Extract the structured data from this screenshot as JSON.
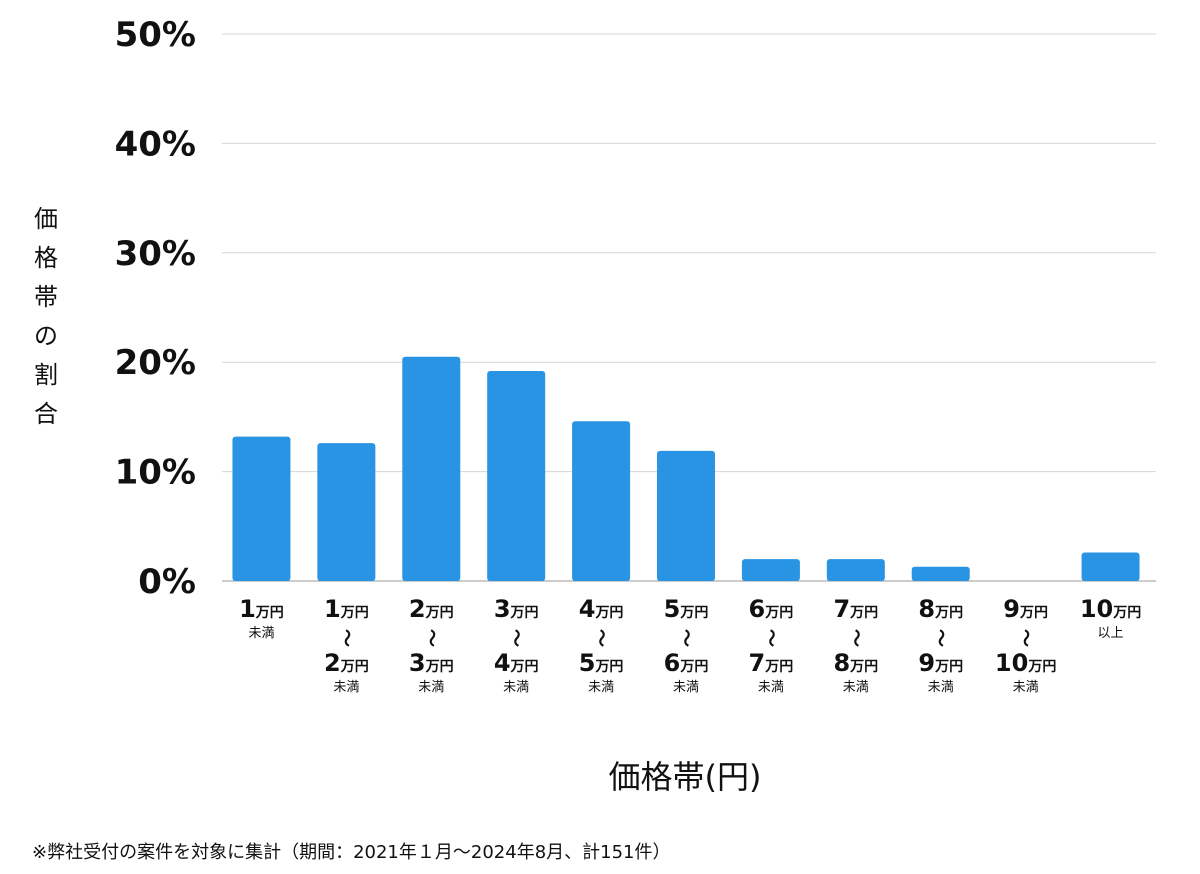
{
  "chart_data": {
    "type": "bar",
    "xlabel": "価格帯(円)",
    "ylabel": "価格帯の割合",
    "ylim": [
      0,
      50
    ],
    "yticks": [
      "0%",
      "10%",
      "20%",
      "30%",
      "40%",
      "50%"
    ],
    "grid": true,
    "bar_color": "#2a94e4",
    "unit_label": "万円",
    "tilde": "〜",
    "categories": [
      {
        "from": "1",
        "to": null,
        "note": "未満"
      },
      {
        "from": "1",
        "to": "2",
        "note": "未満"
      },
      {
        "from": "2",
        "to": "3",
        "note": "未満"
      },
      {
        "from": "3",
        "to": "4",
        "note": "未満"
      },
      {
        "from": "4",
        "to": "5",
        "note": "未満"
      },
      {
        "from": "5",
        "to": "6",
        "note": "未満"
      },
      {
        "from": "6",
        "to": "7",
        "note": "未満"
      },
      {
        "from": "7",
        "to": "8",
        "note": "未満"
      },
      {
        "from": "8",
        "to": "9",
        "note": "未満"
      },
      {
        "from": "9",
        "to": "10",
        "note": "未満"
      },
      {
        "from": "10",
        "to": null,
        "note": "以上"
      }
    ],
    "values": [
      13.2,
      12.6,
      20.5,
      19.2,
      14.6,
      11.9,
      2.0,
      2.0,
      1.3,
      0,
      2.6
    ]
  },
  "footnote": "※弊社受付の案件を対象に集計（期間：2021年１月〜2024年8月、計151件）"
}
